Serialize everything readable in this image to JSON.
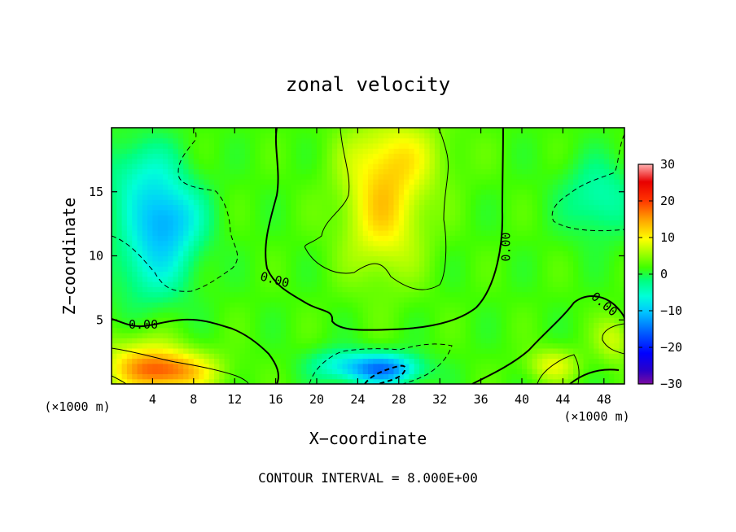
{
  "chart_data": {
    "type": "heatmap",
    "title": "zonal velocity",
    "xlabel": "X−coordinate",
    "ylabel": "Z−coordinate",
    "x_unit_left": "(×1000 m)",
    "x_unit_right": "(×1000 m)",
    "footer": "CONTOUR INTERVAL = 8.000E+00",
    "xlim": [
      0,
      50
    ],
    "ylim": [
      0,
      20
    ],
    "x_ticks": [
      4,
      8,
      12,
      16,
      20,
      24,
      28,
      32,
      36,
      40,
      44,
      48
    ],
    "y_ticks": [
      5,
      10,
      15
    ],
    "colorbar": {
      "vmin": -30,
      "vmax": 30,
      "ticks": [
        30,
        20,
        10,
        0,
        -10,
        -20,
        -30
      ],
      "tick_labels": [
        "30",
        "20",
        "10",
        "0",
        "−10",
        "−20",
        "−30"
      ]
    },
    "contour_labels": [
      {
        "text": "0.00",
        "x": 3.1,
        "y": 4.6,
        "rotate": 0
      },
      {
        "text": "0.00",
        "x": 15.9,
        "y": 8.1,
        "rotate": 15
      },
      {
        "text": "0.00",
        "x": 38.5,
        "y": 10.7,
        "rotate": -90
      },
      {
        "text": "0.00",
        "x": 48.0,
        "y": 6.2,
        "rotate": 40
      }
    ],
    "features": [
      {
        "name": "warm-core-surface",
        "x": 5.5,
        "y": 1.0,
        "value": 14,
        "sx": 4.5,
        "sy": 1.6
      },
      {
        "name": "warm-left-surface",
        "x": 2.5,
        "y": 2.0,
        "value": 6,
        "sx": 4,
        "sy": 2.2
      },
      {
        "name": "cold-upper-left",
        "x": 5.5,
        "y": 13.0,
        "value": -10,
        "sx": 3.5,
        "sy": 2.8
      },
      {
        "name": "cold-left-mid",
        "x": 4.0,
        "y": 9.5,
        "value": -7,
        "sx": 4,
        "sy": 3.5
      },
      {
        "name": "cold-upper-left-b",
        "x": 3.0,
        "y": 16.5,
        "value": -6,
        "sx": 4,
        "sy": 3.0
      },
      {
        "name": "cold-right-upper",
        "x": 47.5,
        "y": 14.5,
        "value": -6,
        "sx": 3.5,
        "sy": 3.0
      },
      {
        "name": "cold-bottom-center",
        "x": 26.5,
        "y": 1.2,
        "value": -16,
        "sx": 3.5,
        "sy": 1.2
      },
      {
        "name": "cold-bottom-center-b",
        "x": 22.0,
        "y": 1.5,
        "value": -6,
        "sx": 3.0,
        "sy": 1.3
      },
      {
        "name": "warm-top-center",
        "x": 26.5,
        "y": 13.5,
        "value": 10,
        "sx": 4,
        "sy": 5
      },
      {
        "name": "warm-top-center-b",
        "x": 28.0,
        "y": 18.0,
        "value": 6,
        "sx": 5,
        "sy": 3
      },
      {
        "name": "warm-bottom-right",
        "x": 43.0,
        "y": 1.5,
        "value": 7,
        "sx": 2.5,
        "sy": 1.3
      },
      {
        "name": "warm-right-edge",
        "x": 49.0,
        "y": 3.5,
        "value": 6,
        "sx": 1.8,
        "sy": 1.8
      }
    ],
    "base_value": 2
  }
}
